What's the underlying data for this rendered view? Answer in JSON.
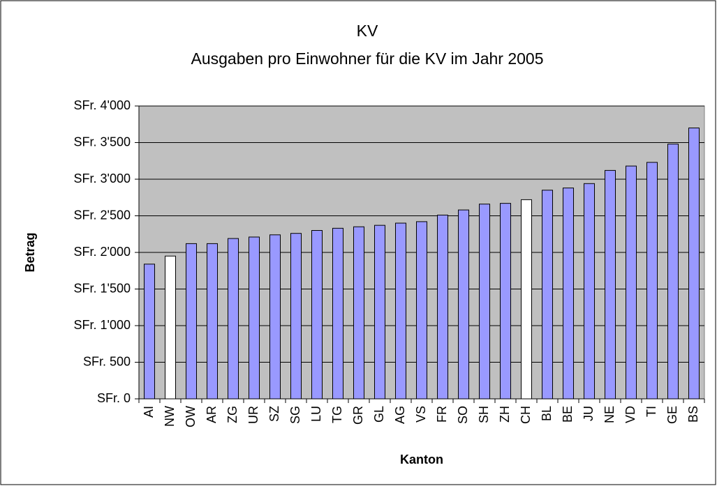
{
  "chart_data": {
    "type": "bar",
    "title": "KV",
    "subtitle": "Ausgaben pro Einwohner für die KV im Jahr 2005",
    "x_label": "Kanton",
    "y_label": "Betrag",
    "categories": [
      "AI",
      "NW",
      "OW",
      "AR",
      "ZG",
      "UR",
      "SZ",
      "SG",
      "LU",
      "TG",
      "GR",
      "GL",
      "AG",
      "VS",
      "FR",
      "SO",
      "SH",
      "ZH",
      "CH",
      "BL",
      "BE",
      "JU",
      "NE",
      "VD",
      "TI",
      "GE",
      "BS"
    ],
    "values": [
      1840,
      1950,
      2120,
      2120,
      2190,
      2210,
      2240,
      2260,
      2300,
      2330,
      2350,
      2370,
      2400,
      2420,
      2510,
      2580,
      2660,
      2670,
      2720,
      2850,
      2880,
      2940,
      3120,
      3180,
      3230,
      3480,
      3700
    ],
    "colors": [
      "#9999ff",
      "#ffffff",
      "#9999ff",
      "#9999ff",
      "#9999ff",
      "#9999ff",
      "#9999ff",
      "#9999ff",
      "#9999ff",
      "#9999ff",
      "#9999ff",
      "#9999ff",
      "#9999ff",
      "#9999ff",
      "#9999ff",
      "#9999ff",
      "#9999ff",
      "#9999ff",
      "#ffffff",
      "#9999ff",
      "#9999ff",
      "#9999ff",
      "#9999ff",
      "#9999ff",
      "#9999ff",
      "#9999ff",
      "#9999ff"
    ],
    "ylim": [
      0,
      4000
    ],
    "yticks": [
      {
        "value": 0,
        "label": "SFr. 0"
      },
      {
        "value": 500,
        "label": "SFr. 500"
      },
      {
        "value": 1000,
        "label": "SFr. 1'000"
      },
      {
        "value": 1500,
        "label": "SFr. 1'500"
      },
      {
        "value": 2000,
        "label": "SFr. 2'000"
      },
      {
        "value": 2500,
        "label": "SFr. 2'500"
      },
      {
        "value": 3000,
        "label": "SFr. 3'000"
      },
      {
        "value": 3500,
        "label": "SFr. 3'500"
      },
      {
        "value": 4000,
        "label": "SFr. 4'000"
      }
    ],
    "grid": true
  }
}
